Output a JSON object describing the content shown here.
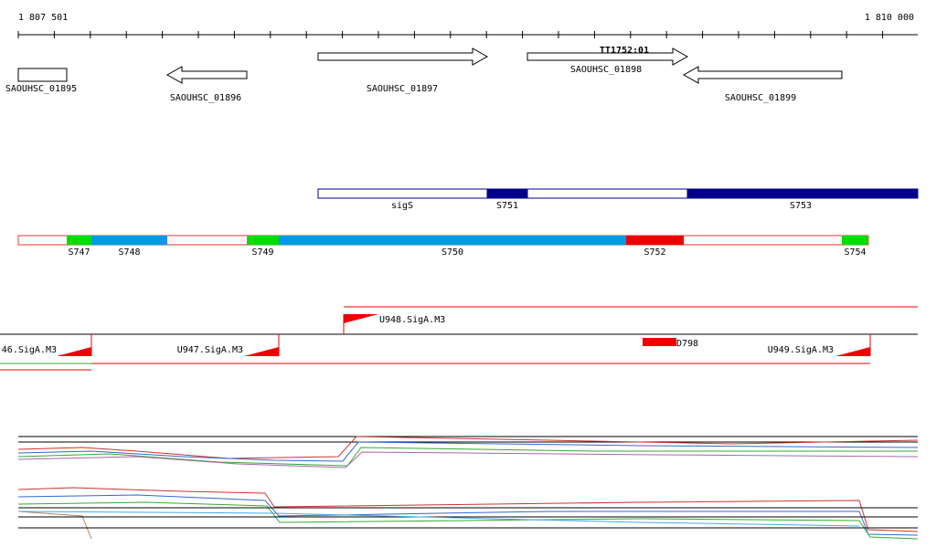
{
  "ruler": {
    "start": "1 807 501",
    "end": "1 810 000"
  },
  "genes": [
    "SAOUHSC_01895",
    "SAOUHSC_01896",
    "SAOUHSC_01897",
    "SAOUHSC_01898",
    "SAOUHSC_01899"
  ],
  "terminator": "TT1752:01",
  "segments_top": [
    "sigS",
    "S751",
    "S753"
  ],
  "segments_bottom": [
    "S747",
    "S748",
    "S749",
    "S750",
    "S752",
    "S754"
  ],
  "features": [
    "46.SigA.M3",
    "U947.SigA.M3",
    "U948.SigA.M3",
    "D798",
    "U949.SigA.M3"
  ]
}
